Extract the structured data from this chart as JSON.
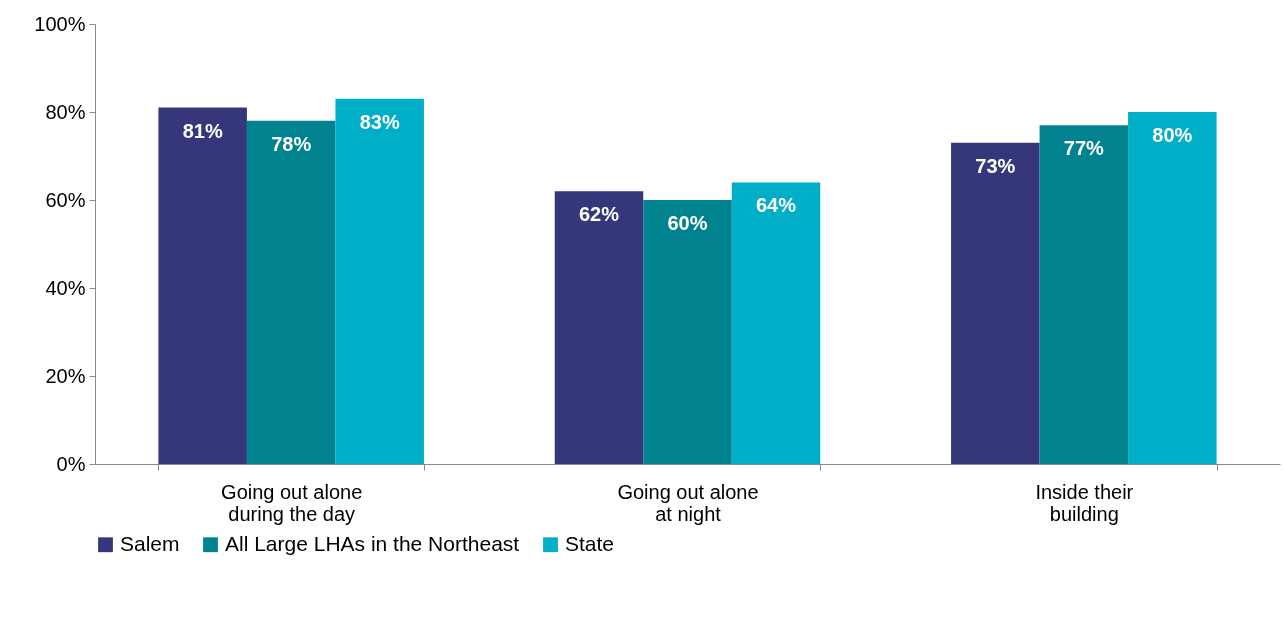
{
  "chart_data": {
    "type": "bar",
    "categories": [
      "Going out alone during the day",
      "Going out alone at night",
      "Inside their building"
    ],
    "series": [
      {
        "name": "Salem",
        "color": "#35377a",
        "values": [
          81,
          62,
          73
        ],
        "value_labels": [
          "81%",
          "62%",
          "73%"
        ]
      },
      {
        "name": "All Large LHAs in the Northeast",
        "color": "#00838f",
        "values": [
          78,
          60,
          77
        ],
        "value_labels": [
          "78%",
          "60%",
          "77%"
        ]
      },
      {
        "name": "State",
        "color": "#00aec7",
        "values": [
          83,
          64,
          80
        ],
        "value_labels": [
          "83%",
          "64%",
          "80%"
        ]
      }
    ],
    "ylim": [
      0,
      100
    ],
    "yticks": [
      {
        "value": 0,
        "label": "0%"
      },
      {
        "value": 20,
        "label": "20%"
      },
      {
        "value": 40,
        "label": "40%"
      },
      {
        "value": 60,
        "label": "60%"
      },
      {
        "value": 80,
        "label": "80%"
      },
      {
        "value": 100,
        "label": "100%"
      }
    ],
    "grid": false,
    "legend": "bottom"
  }
}
